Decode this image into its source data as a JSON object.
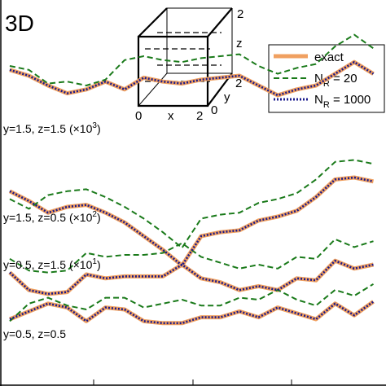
{
  "panel_label": "3D",
  "cube": {
    "axis_x": "x",
    "axis_y": "y",
    "axis_z": "z",
    "tick_x0": "0",
    "tick_x2": "2",
    "tick_y0": "0",
    "tick_y2": "2",
    "tick_z2": "2"
  },
  "legend": {
    "exact": "exact",
    "nr20_main": "N",
    "nr20_sub": "R",
    "nr20_val": " = 20",
    "nr1000_main": "N",
    "nr1000_sub": "R",
    "nr1000_val": " = 1000"
  },
  "colors": {
    "exact": "#f0a060",
    "nr20": "#1a7a1a",
    "nr1000": "#1a1a8c"
  },
  "chart_data": {
    "type": "line",
    "x": [
      0,
      1,
      2,
      3,
      4,
      5,
      6,
      7,
      8,
      9,
      10,
      11,
      12,
      13,
      14,
      15,
      16,
      17,
      18,
      19
    ],
    "panel_labels": [
      {
        "text": "y=1.5, z=1.5",
        "scale": "(×10",
        "exp": "3",
        "close": ")"
      },
      {
        "text": "y=1.5, z=0.5",
        "scale": "(×10",
        "exp": "2",
        "close": ")"
      },
      {
        "text": "y=0.5, z=1.5",
        "scale": "(×10",
        "exp": "1",
        "close": ")"
      },
      {
        "text": "y=0.5, z=0.5",
        "scale": "",
        "exp": "",
        "close": ""
      }
    ],
    "series": [
      {
        "name": "exact",
        "values": [
          [
            5.8,
            5.5,
            5.0,
            4.6,
            4.8,
            5.2,
            4.8,
            5.4,
            5.2,
            5.1,
            5.3,
            5.4,
            5.5,
            5.0,
            4.5,
            4.8,
            5.0,
            5.6,
            6.2,
            5.6
          ],
          [
            4.8,
            4.3,
            3.7,
            4.0,
            4.1,
            3.7,
            3.2,
            2.5,
            1.8,
            1.0,
            2.5,
            2.7,
            2.8,
            3.3,
            3.5,
            3.8,
            4.5,
            5.4,
            5.5,
            5.3
          ],
          [
            4.6,
            3.7,
            3.5,
            3.6,
            4.5,
            4.3,
            4.4,
            4.4,
            4.4,
            5.0,
            4.3,
            4.1,
            3.7,
            3.9,
            3.7,
            4.3,
            4.2,
            5.2,
            4.8,
            5.0
          ],
          [
            4.5,
            4.9,
            5.3,
            5.1,
            4.4,
            5.1,
            5.0,
            4.4,
            4.3,
            4.3,
            4.6,
            4.6,
            4.9,
            4.6,
            5.1,
            4.8,
            4.5,
            5.3,
            4.7,
            5.4
          ]
        ]
      },
      {
        "name": "N_R = 20",
        "values": [
          [
            6.0,
            5.8,
            5.1,
            5.2,
            5.0,
            5.3,
            6.3,
            6.5,
            6.3,
            6.2,
            6.4,
            6.5,
            6.6,
            6.0,
            5.6,
            5.9,
            6.1,
            7.0,
            7.6,
            6.9
          ],
          [
            4.4,
            3.9,
            4.6,
            4.8,
            4.9,
            4.5,
            4.0,
            3.4,
            2.7,
            1.9,
            3.4,
            3.6,
            3.7,
            4.2,
            4.4,
            4.7,
            5.4,
            6.3,
            6.4,
            6.2
          ],
          [
            5.3,
            4.7,
            4.6,
            4.7,
            5.6,
            5.4,
            5.5,
            5.5,
            5.6,
            6.1,
            5.4,
            5.1,
            4.8,
            5.0,
            4.8,
            5.4,
            5.3,
            6.3,
            5.9,
            6.2
          ],
          [
            4.4,
            5.3,
            5.6,
            5.2,
            5.0,
            5.6,
            5.6,
            5.1,
            5.3,
            5.5,
            5.2,
            5.2,
            5.6,
            5.5,
            6.0,
            5.5,
            5.2,
            6.0,
            5.7,
            6.3
          ]
        ]
      },
      {
        "name": "N_R = 1000",
        "values": [
          [
            5.8,
            5.5,
            5.0,
            4.6,
            4.8,
            5.2,
            4.8,
            5.4,
            5.2,
            5.1,
            5.3,
            5.4,
            5.5,
            5.0,
            4.5,
            4.8,
            5.0,
            5.6,
            6.2,
            5.6
          ],
          [
            4.8,
            4.3,
            3.7,
            4.0,
            4.1,
            3.7,
            3.2,
            2.5,
            1.8,
            1.0,
            2.5,
            2.7,
            2.8,
            3.3,
            3.5,
            3.8,
            4.5,
            5.4,
            5.5,
            5.3
          ],
          [
            4.6,
            3.7,
            3.5,
            3.6,
            4.5,
            4.3,
            4.4,
            4.4,
            4.4,
            5.0,
            4.3,
            4.1,
            3.7,
            3.9,
            3.7,
            4.3,
            4.2,
            5.2,
            4.8,
            5.0
          ],
          [
            4.5,
            4.9,
            5.3,
            5.1,
            4.4,
            5.1,
            5.0,
            4.4,
            4.3,
            4.3,
            4.6,
            4.6,
            4.9,
            4.6,
            5.1,
            4.8,
            4.5,
            5.3,
            4.7,
            5.4
          ]
        ]
      }
    ],
    "grid": false,
    "legend_position": "top-right"
  }
}
